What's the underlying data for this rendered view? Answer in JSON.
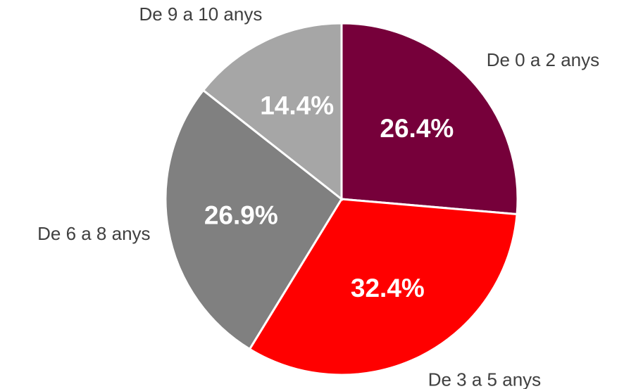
{
  "chart_data": {
    "type": "pie",
    "categories": [
      "De 0 a 2 anys",
      "De 3 a 5 anys",
      "De 6 a 8 anys",
      "De 9 a 10 anys"
    ],
    "values": [
      26.4,
      32.4,
      26.9,
      14.4
    ],
    "value_labels": [
      "26.4%",
      "32.4%",
      "26.9%",
      "14.4%"
    ],
    "colors": [
      "#76003a",
      "#ff0000",
      "#808080",
      "#a6a6a6"
    ]
  }
}
